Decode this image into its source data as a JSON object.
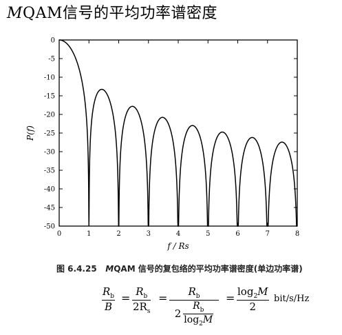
{
  "page_title": {
    "italic_m": "M",
    "rest": "QAM信号的平均功率谱密度"
  },
  "chart_data": {
    "type": "line",
    "title": "",
    "xlabel": "f / Rs",
    "ylabel": "P(f)",
    "xlim": [
      0,
      8
    ],
    "ylim": [
      -50,
      0
    ],
    "x_ticks": [
      "0",
      "1",
      "2",
      "3",
      "4",
      "5",
      "6",
      "7",
      "8"
    ],
    "y_ticks": [
      "0",
      "-5",
      "-10",
      "-15",
      "-20",
      "-25",
      "-30",
      "-35",
      "-40",
      "-45",
      "-50"
    ],
    "grid": false,
    "description_function": "10*log10(sinc^2(f/Rs))",
    "series": [
      {
        "x": [
          0,
          0.1,
          0.2,
          0.3,
          0.4,
          0.5,
          0.6,
          0.7,
          0.8,
          0.9,
          1.0,
          1.1,
          1.2,
          1.3,
          1.43,
          1.6,
          1.7,
          1.8,
          1.9,
          2.0,
          2.1,
          2.2,
          2.3,
          2.46,
          2.6,
          2.7,
          2.8,
          2.9,
          3.0,
          3.1,
          3.2,
          3.3,
          3.47,
          3.6,
          3.7,
          3.8,
          3.9,
          4.0,
          4.1,
          4.2,
          4.3,
          4.48,
          4.6,
          4.7,
          4.8,
          4.9,
          5.0,
          5.1,
          5.2,
          5.3,
          5.49,
          5.6,
          5.7,
          5.8,
          5.9,
          6.0,
          6.1,
          6.2,
          6.3,
          6.49,
          6.6,
          6.7,
          6.8,
          6.9,
          7.0,
          7.1,
          7.2,
          7.3,
          7.5,
          7.6,
          7.7,
          7.8,
          7.9,
          8.0
        ],
        "y": [
          0,
          -0.1,
          -0.6,
          -1.3,
          -2.4,
          -3.9,
          -5.9,
          -8.6,
          -12.4,
          -18.7,
          -50,
          -19.6,
          -15.9,
          -14.1,
          -13.3,
          -13.9,
          -14.9,
          -16.8,
          -20.8,
          -50,
          -23.0,
          -19.9,
          -18.4,
          -17.8,
          -18.2,
          -19.1,
          -20.6,
          -23.9,
          -50,
          -26.2,
          -23.1,
          -21.9,
          -21.2,
          -21.6,
          -22.4,
          -23.8,
          -27.7,
          -50,
          -28.5,
          -25.6,
          -24.4,
          -24.1,
          -24.3,
          -25.0,
          -26.4,
          -30.0,
          -50,
          -30.1,
          -27.5,
          -26.4,
          -25.9,
          -26.1,
          -26.6,
          -27.7,
          -31.5,
          -50,
          -31.8,
          -29.0,
          -27.7,
          -27.2,
          -27.5,
          -28.0,
          -29.3,
          -32.9,
          -50,
          -33.2,
          -30.4,
          -29.2,
          -28.7,
          -28.8,
          -29.3,
          -30.5,
          -34.0,
          -50
        ]
      }
    ]
  },
  "caption": {
    "figure_no": "图 6.4.25",
    "text_m": "M",
    "text_rest": "QAM 信号的复包络的平均功率谱密度(单边功率谱)"
  },
  "formula": {
    "rb": "R",
    "rb_sub": "b",
    "b": "B",
    "two_rs": "2R",
    "rs_sub": "s",
    "two": "2",
    "log2m": "log",
    "log2m_sub": "2",
    "m": "M",
    "eq": "=",
    "unit": "bit/s/Hz"
  }
}
